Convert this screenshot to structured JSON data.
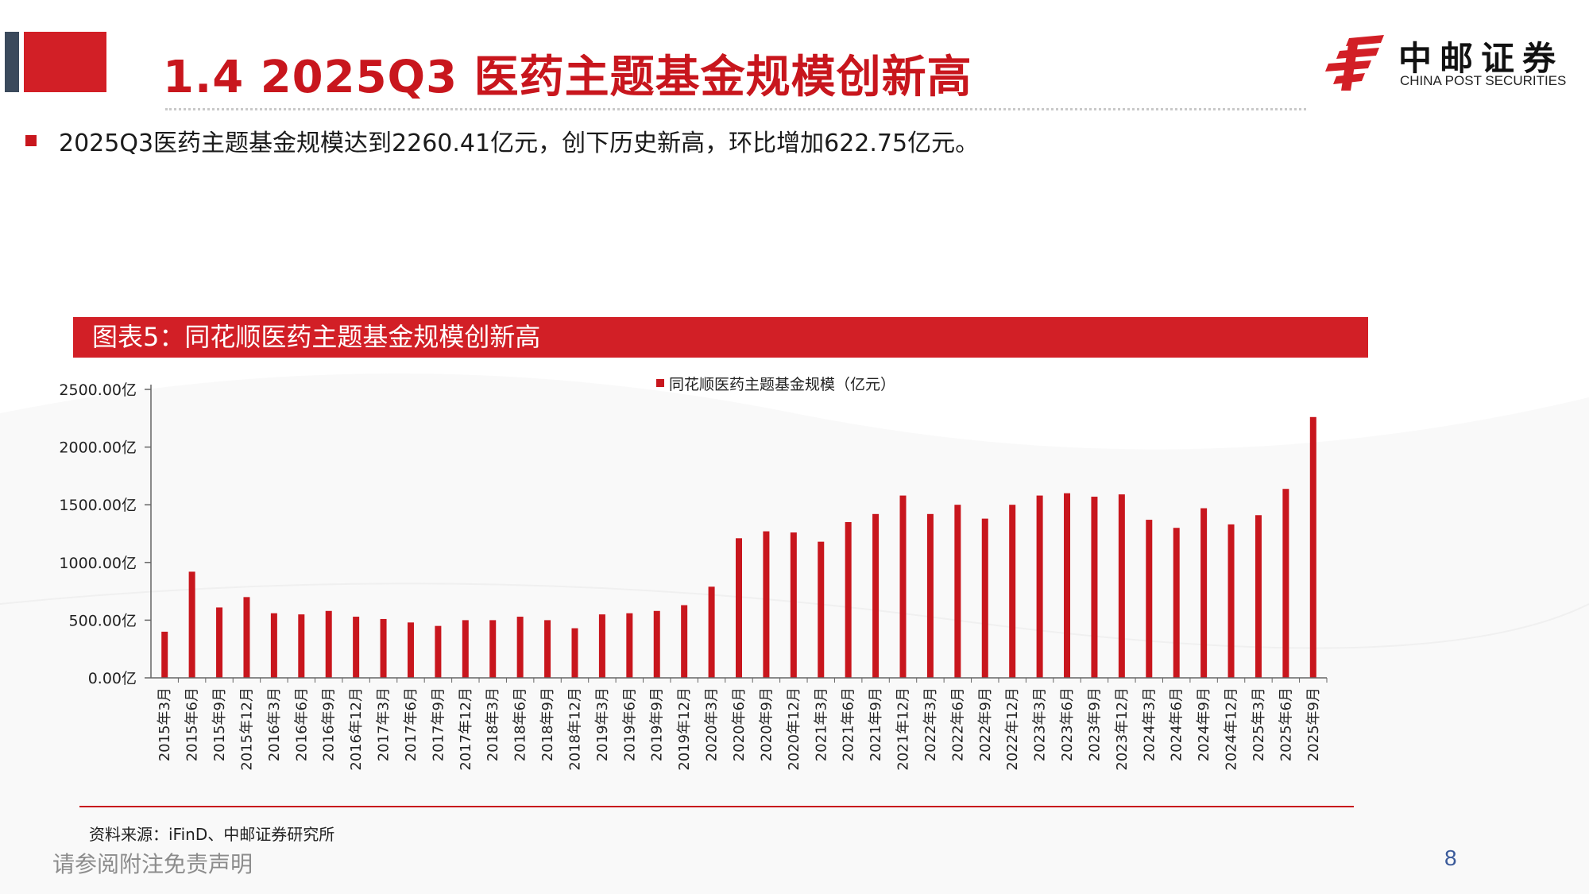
{
  "header": {
    "title": "1.4 2025Q3 医药主题基金规模创新高"
  },
  "logo": {
    "cn": "中邮证券",
    "en": "CHINA POST SECURITIES",
    "color": "#d21f26"
  },
  "bullet": {
    "text": "2025Q3医药主题基金规模达到2260.41亿元，创下历史新高，环比增加622.75亿元。"
  },
  "figure": {
    "caption": "图表5：同花顺医药主题基金规模创新高"
  },
  "footer": {
    "source": "资料来源：iFinD、中邮证券研究所",
    "disclaimer": "请参阅附注免责声明",
    "page_number": "8"
  },
  "colors": {
    "brand_red": "#d21f26",
    "bar": "#c8161d",
    "slate": "#3b4a5c"
  },
  "chart_data": {
    "type": "bar",
    "legend_position": "top-center",
    "ylim": [
      0,
      2500
    ],
    "y_ticks": [
      0,
      500,
      1000,
      1500,
      2000,
      2500
    ],
    "y_tick_labels": [
      "0.00亿",
      "500.00亿",
      "1000.00亿",
      "1500.00亿",
      "2000.00亿",
      "2500.00亿"
    ],
    "grid": false,
    "categories": [
      "2015年3月",
      "2015年6月",
      "2015年9月",
      "2015年12月",
      "2016年3月",
      "2016年6月",
      "2016年9月",
      "2016年12月",
      "2017年3月",
      "2017年6月",
      "2017年9月",
      "2017年12月",
      "2018年3月",
      "2018年6月",
      "2018年9月",
      "2018年12月",
      "2019年3月",
      "2019年6月",
      "2019年9月",
      "2019年12月",
      "2020年3月",
      "2020年6月",
      "2020年9月",
      "2020年12月",
      "2021年3月",
      "2021年6月",
      "2021年9月",
      "2021年12月",
      "2022年3月",
      "2022年6月",
      "2022年9月",
      "2022年12月",
      "2023年3月",
      "2023年6月",
      "2023年9月",
      "2023年12月",
      "2024年3月",
      "2024年6月",
      "2024年9月",
      "2024年12月",
      "2025年3月",
      "2025年6月",
      "2025年9月"
    ],
    "series": [
      {
        "name": "同花顺医药主题基金规模（亿元）",
        "color": "#c8161d",
        "values": [
          400,
          920,
          610,
          700,
          560,
          550,
          580,
          530,
          510,
          480,
          450,
          500,
          500,
          530,
          500,
          430,
          550,
          560,
          580,
          630,
          790,
          1210,
          1270,
          1260,
          1180,
          1350,
          1420,
          1580,
          1420,
          1500,
          1380,
          1500,
          1580,
          1600,
          1570,
          1590,
          1370,
          1300,
          1470,
          1330,
          1410,
          1637.66,
          2260.41
        ]
      }
    ]
  }
}
